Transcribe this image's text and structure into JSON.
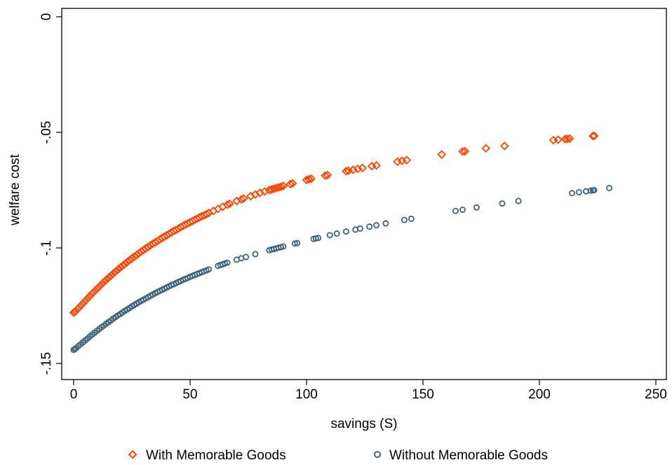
{
  "colors": {
    "series_with": "#ff4500",
    "series_without": "#3e6478"
  },
  "chart_data": {
    "type": "scatter",
    "title": "",
    "xlabel": "savings (S)",
    "ylabel": "welfare cost",
    "xlim": [
      0,
      250
    ],
    "ylim": [
      -0.15,
      0
    ],
    "xticks": [
      0,
      50,
      100,
      150,
      200,
      250
    ],
    "xtick_labels": [
      "0",
      "50",
      "100",
      "150",
      "200",
      "250"
    ],
    "yticks": [
      0,
      -0.05,
      -0.1,
      -0.15
    ],
    "ytick_labels": [
      "0",
      "-.05",
      "-.1",
      "-.15"
    ],
    "grid": false,
    "legend_position": "bottom",
    "series": [
      {
        "name": "With Memorable Goods",
        "marker": "diamond",
        "color": "#ff4500",
        "x": [
          0,
          0.5,
          1,
          2,
          3,
          4,
          5,
          6,
          7,
          8,
          9,
          10,
          11,
          12,
          13,
          14,
          15,
          16,
          17,
          18,
          19,
          20,
          21,
          22,
          23,
          24,
          25,
          26,
          27,
          28,
          29,
          30,
          31,
          32,
          33,
          34,
          35,
          36,
          37,
          38,
          39,
          40,
          41,
          42,
          43,
          44,
          45,
          46,
          47,
          48,
          49,
          50,
          51,
          52,
          53,
          54,
          55,
          56,
          57,
          58,
          60,
          62,
          64,
          66,
          67,
          70,
          72,
          73,
          76,
          78,
          80,
          82,
          84,
          85,
          86,
          87,
          88,
          89,
          90,
          93,
          94,
          100,
          101,
          102,
          108,
          109,
          117,
          118,
          120,
          122,
          124,
          128,
          130,
          139,
          141,
          143,
          158,
          167,
          168,
          177,
          185,
          206,
          208,
          211,
          212,
          213,
          223,
          223.5
        ],
        "y": [
          -0.128,
          -0.1277,
          -0.1272,
          -0.1261,
          -0.125,
          -0.124,
          -0.1229,
          -0.1218,
          -0.1208,
          -0.1197,
          -0.1187,
          -0.1177,
          -0.1167,
          -0.1157,
          -0.1147,
          -0.1138,
          -0.1129,
          -0.112,
          -0.1111,
          -0.1102,
          -0.1094,
          -0.1085,
          -0.1077,
          -0.1069,
          -0.1061,
          -0.1053,
          -0.1046,
          -0.1038,
          -0.1031,
          -0.1023,
          -0.1016,
          -0.1009,
          -0.1002,
          -0.0996,
          -0.0989,
          -0.0982,
          -0.0976,
          -0.097,
          -0.0963,
          -0.0957,
          -0.0951,
          -0.0945,
          -0.0939,
          -0.0933,
          -0.0927,
          -0.0922,
          -0.0916,
          -0.091,
          -0.0905,
          -0.0899,
          -0.0894,
          -0.0889,
          -0.0884,
          -0.0878,
          -0.0873,
          -0.0868,
          -0.0863,
          -0.0859,
          -0.0854,
          -0.0849,
          -0.084,
          -0.0831,
          -0.0822,
          -0.0813,
          -0.0809,
          -0.0797,
          -0.079,
          -0.0786,
          -0.0776,
          -0.0769,
          -0.0762,
          -0.0756,
          -0.075,
          -0.0747,
          -0.0744,
          -0.0741,
          -0.0738,
          -0.0735,
          -0.0732,
          -0.0724,
          -0.0721,
          -0.0706,
          -0.0703,
          -0.0701,
          -0.0687,
          -0.0685,
          -0.0668,
          -0.0666,
          -0.0662,
          -0.0658,
          -0.0654,
          -0.0646,
          -0.0643,
          -0.0627,
          -0.0623,
          -0.062,
          -0.0596,
          -0.0583,
          -0.0582,
          -0.0569,
          -0.0559,
          -0.0534,
          -0.0532,
          -0.0529,
          -0.0528,
          -0.0527,
          -0.0516,
          -0.0515
        ]
      },
      {
        "name": "Without Memorable Goods",
        "marker": "circle",
        "color": "#3e6478",
        "x": [
          0,
          0.5,
          1,
          2,
          3,
          4,
          5,
          6,
          7,
          8,
          9,
          10,
          11,
          12,
          13,
          14,
          15,
          16,
          17,
          18,
          19,
          20,
          21,
          22,
          23,
          24,
          25,
          26,
          27,
          28,
          29,
          30,
          31,
          32,
          33,
          34,
          35,
          36,
          37,
          38,
          39,
          40,
          41,
          42,
          43,
          44,
          45,
          46,
          47,
          48,
          49,
          50,
          51,
          52,
          53,
          54,
          55,
          56,
          57,
          58,
          62,
          63,
          64,
          65,
          66,
          70,
          72,
          74,
          78,
          84,
          85,
          86,
          87,
          88,
          89,
          90,
          95,
          96,
          103,
          104,
          105,
          110,
          113,
          117,
          121,
          123,
          127,
          130,
          134,
          142,
          145,
          164,
          167,
          173,
          184,
          191,
          214,
          217,
          220,
          222,
          223,
          223.5,
          230
        ],
        "y": [
          -0.1441,
          -0.1438,
          -0.1434,
          -0.1425,
          -0.1417,
          -0.1408,
          -0.14,
          -0.1392,
          -0.1383,
          -0.1375,
          -0.1367,
          -0.1359,
          -0.1351,
          -0.1343,
          -0.1336,
          -0.1328,
          -0.1321,
          -0.1314,
          -0.1306,
          -0.1299,
          -0.1292,
          -0.1286,
          -0.1279,
          -0.1272,
          -0.1266,
          -0.126,
          -0.1253,
          -0.1247,
          -0.1241,
          -0.1235,
          -0.1229,
          -0.1224,
          -0.1218,
          -0.1213,
          -0.1207,
          -0.1202,
          -0.1196,
          -0.1191,
          -0.1186,
          -0.1181,
          -0.1176,
          -0.1171,
          -0.1166,
          -0.1161,
          -0.1157,
          -0.1152,
          -0.1147,
          -0.1143,
          -0.1138,
          -0.1134,
          -0.113,
          -0.1125,
          -0.1121,
          -0.1117,
          -0.1113,
          -0.1109,
          -0.1105,
          -0.1101,
          -0.1097,
          -0.1093,
          -0.1078,
          -0.1074,
          -0.1071,
          -0.1067,
          -0.1064,
          -0.1051,
          -0.1045,
          -0.1039,
          -0.1027,
          -0.101,
          -0.1007,
          -0.1005,
          -0.1002,
          -0.0999,
          -0.0997,
          -0.0994,
          -0.0981,
          -0.0979,
          -0.0961,
          -0.0959,
          -0.0957,
          -0.0945,
          -0.0938,
          -0.0929,
          -0.0921,
          -0.0916,
          -0.0908,
          -0.0902,
          -0.0894,
          -0.0879,
          -0.0874,
          -0.084,
          -0.0835,
          -0.0825,
          -0.0808,
          -0.0797,
          -0.0763,
          -0.0759,
          -0.0755,
          -0.0752,
          -0.0751,
          -0.075,
          -0.0741
        ]
      }
    ]
  }
}
